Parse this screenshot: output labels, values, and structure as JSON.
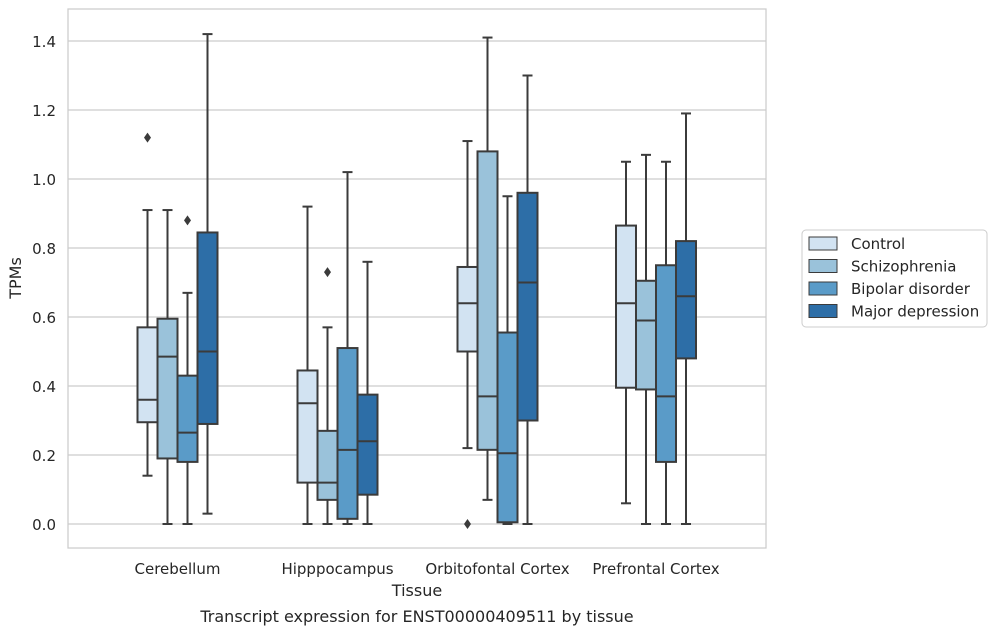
{
  "chart_data": {
    "type": "boxplot",
    "caption": "Transcript expression for ENST00000409511 by tissue",
    "xlabel": "Tissue",
    "ylabel": "TPMs",
    "ylim": [
      -0.07,
      1.49
    ],
    "yticks": [
      "0.0",
      "0.2",
      "0.4",
      "0.6",
      "0.8",
      "1.0",
      "1.2",
      "1.4"
    ],
    "grid": "horizontal",
    "legend_position": "right",
    "categories": [
      "Cerebellum",
      "Hipppocampus",
      "Orbitofontal Cortex",
      "Prefrontal Cortex"
    ],
    "series": [
      {
        "name": "Control",
        "color": "#d2e3f2",
        "boxes": [
          {
            "whislo": 0.14,
            "q1": 0.295,
            "med": 0.36,
            "q3": 0.57,
            "whishi": 0.91,
            "fliers": [
              1.12
            ]
          },
          {
            "whislo": 0.0,
            "q1": 0.12,
            "med": 0.35,
            "q3": 0.445,
            "whishi": 0.92,
            "fliers": []
          },
          {
            "whislo": 0.22,
            "q1": 0.5,
            "med": 0.64,
            "q3": 0.745,
            "whishi": 1.11,
            "fliers": [
              0.0
            ]
          },
          {
            "whislo": 0.06,
            "q1": 0.395,
            "med": 0.64,
            "q3": 0.865,
            "whishi": 1.05,
            "fliers": []
          }
        ]
      },
      {
        "name": "Schizophrenia",
        "color": "#9ac2da",
        "boxes": [
          {
            "whislo": 0.0,
            "q1": 0.19,
            "med": 0.485,
            "q3": 0.595,
            "whishi": 0.91,
            "fliers": []
          },
          {
            "whislo": 0.0,
            "q1": 0.07,
            "med": 0.12,
            "q3": 0.27,
            "whishi": 0.57,
            "fliers": [
              0.73
            ]
          },
          {
            "whislo": 0.07,
            "q1": 0.215,
            "med": 0.37,
            "q3": 1.08,
            "whishi": 1.41,
            "fliers": []
          },
          {
            "whislo": 0.0,
            "q1": 0.39,
            "med": 0.59,
            "q3": 0.705,
            "whishi": 1.07,
            "fliers": []
          }
        ]
      },
      {
        "name": "Bipolar disorder",
        "color": "#5a9bc8",
        "boxes": [
          {
            "whislo": 0.0,
            "q1": 0.18,
            "med": 0.265,
            "q3": 0.43,
            "whishi": 0.67,
            "fliers": [
              0.88
            ]
          },
          {
            "whislo": 0.0,
            "q1": 0.015,
            "med": 0.215,
            "q3": 0.51,
            "whishi": 1.02,
            "fliers": []
          },
          {
            "whislo": 0.0,
            "q1": 0.005,
            "med": 0.205,
            "q3": 0.555,
            "whishi": 0.95,
            "fliers": []
          },
          {
            "whislo": 0.0,
            "q1": 0.18,
            "med": 0.37,
            "q3": 0.75,
            "whishi": 1.05,
            "fliers": []
          }
        ]
      },
      {
        "name": "Major depression",
        "color": "#2d6ea7",
        "boxes": [
          {
            "whislo": 0.03,
            "q1": 0.29,
            "med": 0.5,
            "q3": 0.845,
            "whishi": 1.42,
            "fliers": []
          },
          {
            "whislo": 0.0,
            "q1": 0.085,
            "med": 0.24,
            "q3": 0.375,
            "whishi": 0.76,
            "fliers": []
          },
          {
            "whislo": 0.0,
            "q1": 0.3,
            "med": 0.7,
            "q3": 0.96,
            "whishi": 1.3,
            "fliers": []
          },
          {
            "whislo": 0.0,
            "q1": 0.48,
            "med": 0.66,
            "q3": 0.82,
            "whishi": 1.19,
            "fliers": []
          }
        ]
      }
    ]
  }
}
